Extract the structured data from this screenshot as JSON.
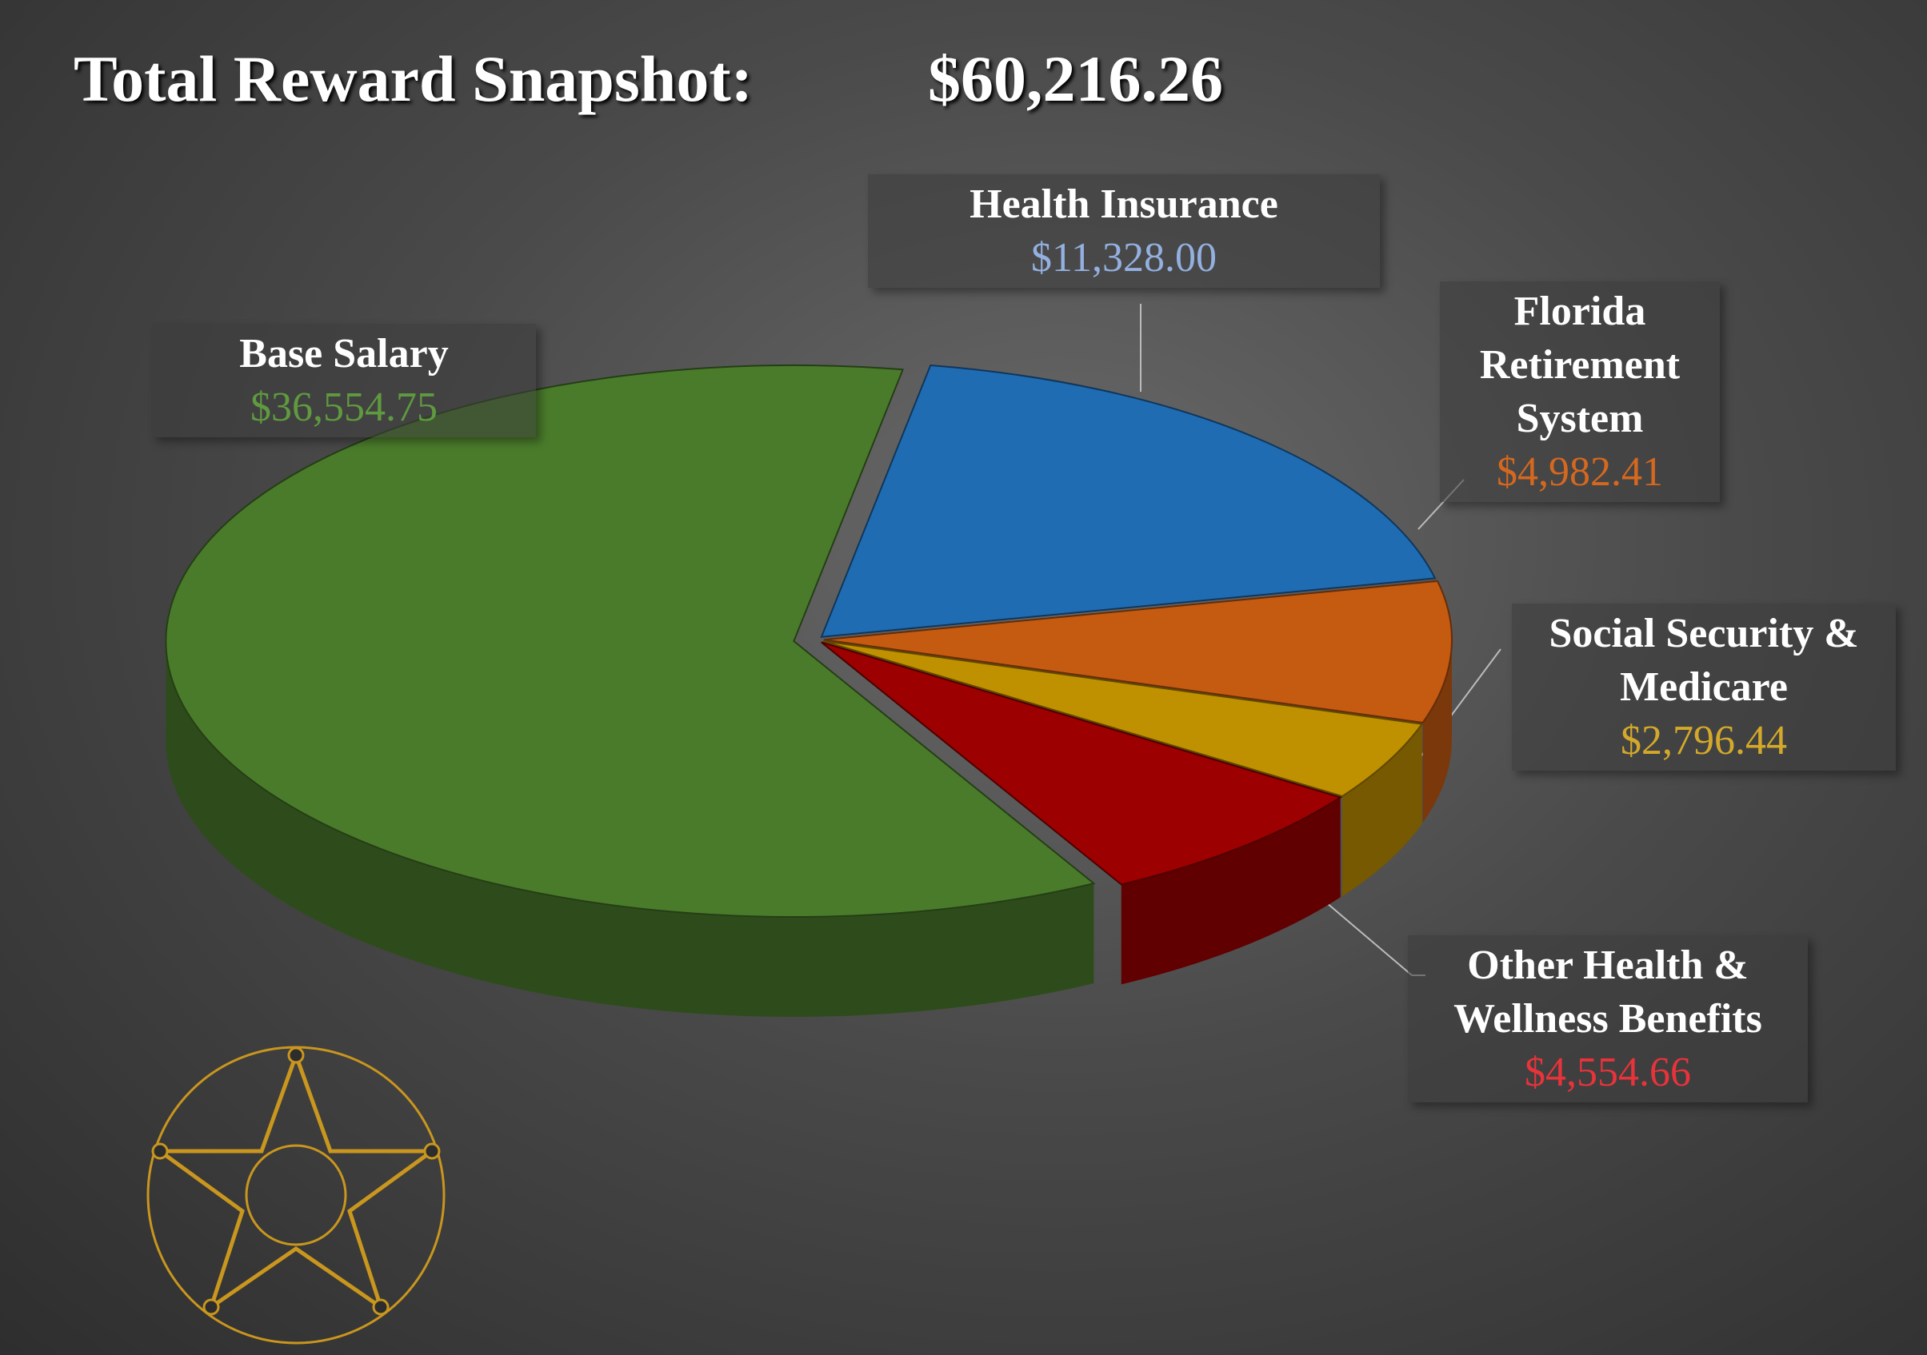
{
  "title": "Total Reward Snapshot:",
  "total": "$60,216.26",
  "chart_data": {
    "type": "pie3d",
    "categories": [
      "Base Salary",
      "Health Insurance",
      "Florida Retirement System",
      "Social Security & Medicare",
      "Other Health & Wellness Benefits"
    ],
    "values": [
      36554.75,
      11328.0,
      4982.41,
      2796.44,
      4554.66
    ],
    "value_labels": [
      "$36,554.75",
      "$11,328.00",
      "$4,982.41",
      "$2,796.44",
      "$4,554.66"
    ],
    "colors": [
      "#4a7b2b",
      "#1f6cb3",
      "#c55a11",
      "#bf9000",
      "#9c0000"
    ],
    "label_colors": [
      "#5f9a3f",
      "#93b0e0",
      "#d5681f",
      "#d4a92a",
      "#e8333a"
    ]
  }
}
